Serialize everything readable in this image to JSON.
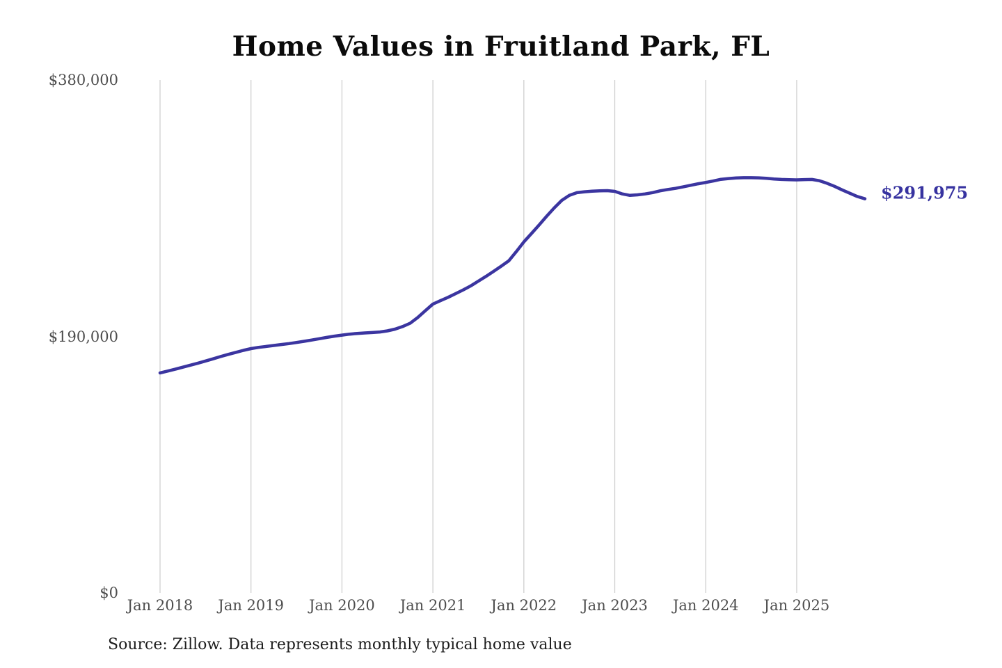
{
  "title": "Home Values in Fruitland Park, FL",
  "source_note": "Source: Zillow. Data represents monthly typical home value",
  "chart_data": {
    "type": "line",
    "title": "Home Values in Fruitland Park, FL",
    "xlabel": "",
    "ylabel": "",
    "ylim": [
      0,
      380000
    ],
    "grid": "vertical-only",
    "legend": "none",
    "colors": {
      "line": "#3b35a0",
      "end_label": "#3733a0",
      "gridline": "#cbcbcb",
      "tick_label": "#4d4d4d"
    },
    "end_label": "$291,975",
    "end_value": 291975,
    "y_ticks": [
      {
        "value": 0,
        "label": "$0"
      },
      {
        "value": 190000,
        "label": "$190,000"
      },
      {
        "value": 380000,
        "label": "$380,000"
      }
    ],
    "x_ticks": [
      {
        "month_index": 0,
        "label": "Jan 2018"
      },
      {
        "month_index": 12,
        "label": "Jan 2019"
      },
      {
        "month_index": 24,
        "label": "Jan 2020"
      },
      {
        "month_index": 36,
        "label": "Jan 2021"
      },
      {
        "month_index": 48,
        "label": "Jan 2022"
      },
      {
        "month_index": 60,
        "label": "Jan 2023"
      },
      {
        "month_index": 72,
        "label": "Jan 2024"
      },
      {
        "month_index": 84,
        "label": "Jan 2025"
      }
    ],
    "series": [
      {
        "name": "Monthly typical home value",
        "start": "2018-01",
        "interval": "monthly",
        "values": [
          163000,
          164300,
          165700,
          167200,
          168700,
          170200,
          171800,
          173400,
          175100,
          176700,
          178200,
          179700,
          181000,
          181900,
          182600,
          183300,
          184000,
          184700,
          185500,
          186400,
          187300,
          188300,
          189300,
          190200,
          191000,
          191700,
          192200,
          192600,
          192900,
          193300,
          194100,
          195400,
          197300,
          199800,
          204000,
          209000,
          214000,
          216500,
          219000,
          221700,
          224500,
          227500,
          231000,
          234500,
          238200,
          242000,
          246000,
          252800,
          260000,
          266200,
          272500,
          279000,
          285200,
          290800,
          294500,
          296500,
          297200,
          297600,
          297900,
          298000,
          297500,
          295600,
          294500,
          294900,
          295600,
          296600,
          297900,
          298900,
          299700,
          300800,
          302000,
          303100,
          304100,
          305200,
          306400,
          307000,
          307400,
          307600,
          307600,
          307500,
          307200,
          306700,
          306300,
          306100,
          306000,
          306200,
          306300,
          305400,
          303500,
          301200,
          298600,
          296100,
          293700,
          291975
        ]
      }
    ]
  }
}
